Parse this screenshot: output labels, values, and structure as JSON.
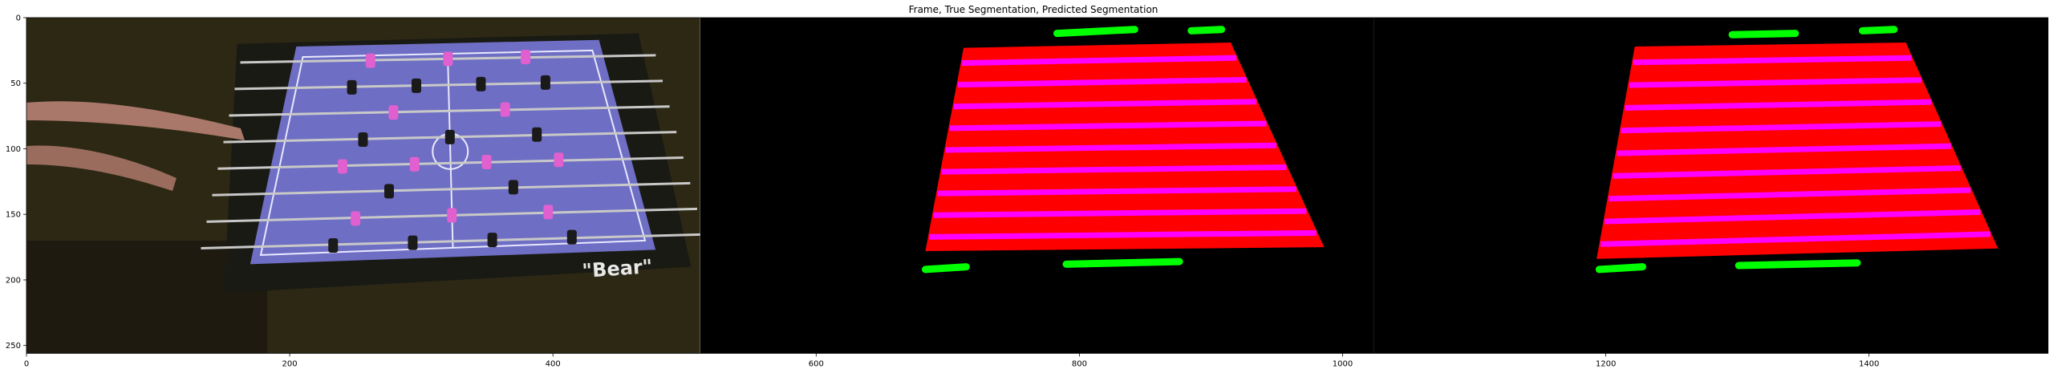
{
  "chart_data": {
    "type": "image",
    "title": "Frame, True Segmentation, Predicted Segmentation",
    "xlabel": "",
    "ylabel": "",
    "xlim": [
      0,
      1536
    ],
    "ylim": [
      256,
      0
    ],
    "x_ticks": [
      0,
      200,
      400,
      600,
      800,
      1000,
      1200,
      1400
    ],
    "y_ticks": [
      0,
      50,
      100,
      150,
      200,
      250
    ],
    "panels": [
      {
        "name": "frame",
        "x_range": [
          0,
          512
        ],
        "content": "camera frame of foosball table with players",
        "table_text": "\"Bear\""
      },
      {
        "name": "true-segmentation",
        "x_range": [
          512,
          1024
        ],
        "table_polygon": [
          [
            712,
            23
          ],
          [
            915,
            19
          ],
          [
            986,
            175
          ],
          [
            683,
            178
          ]
        ],
        "rod_count": 9,
        "green_marks": [
          [
            [
              783,
              12
            ],
            [
              842,
              9
            ]
          ],
          [
            [
              885,
              10
            ],
            [
              908,
              9
            ]
          ],
          [
            [
              683,
              192
            ],
            [
              714,
              190
            ]
          ],
          [
            [
              790,
              188
            ],
            [
              876,
              186
            ]
          ]
        ]
      },
      {
        "name": "predicted-segmentation",
        "x_range": [
          1024,
          1536
        ],
        "table_polygon": [
          [
            1222,
            22
          ],
          [
            1428,
            19
          ],
          [
            1498,
            176
          ],
          [
            1193,
            184
          ]
        ],
        "rod_count": 9,
        "green_marks": [
          [
            [
              1296,
              13
            ],
            [
              1344,
              12
            ]
          ],
          [
            [
              1395,
              10
            ],
            [
              1419,
              9
            ]
          ],
          [
            [
              1195,
              192
            ],
            [
              1228,
              190
            ]
          ],
          [
            [
              1301,
              189
            ],
            [
              1391,
              187
            ]
          ]
        ]
      }
    ],
    "colors": {
      "table": "#ff0000",
      "rods": "#ff00ff",
      "goals": "#00ff00",
      "background": "#000000"
    }
  }
}
